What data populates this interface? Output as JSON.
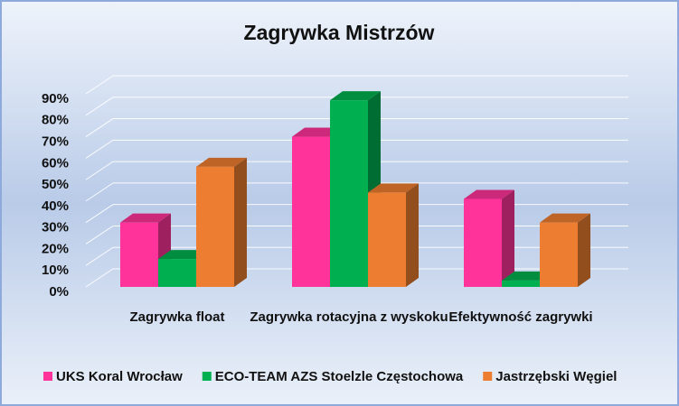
{
  "chart_data": {
    "type": "bar3d",
    "title": "Zagrywka Mistrzów",
    "categories": [
      "Zagrywka float",
      "Zagrywka rotacyjna z wyskoku",
      "Efektywność zagrywki"
    ],
    "series": [
      {
        "name": "UKS Koral Wrocław",
        "color": "#ff3399",
        "values": [
          30,
          70,
          41
        ]
      },
      {
        "name": "ECO-TEAM AZS Stoelzle Częstochowa",
        "color": "#00b050",
        "values": [
          13,
          87,
          3
        ]
      },
      {
        "name": "Jastrzębski Węgiel",
        "color": "#ed7d31",
        "values": [
          56,
          44,
          30
        ]
      }
    ],
    "ylim": [
      0,
      90
    ],
    "yticks": [
      {
        "value": 0,
        "label": "0%"
      },
      {
        "value": 10,
        "label": "10%"
      },
      {
        "value": 20,
        "label": "20%"
      },
      {
        "value": 30,
        "label": "30%"
      },
      {
        "value": 40,
        "label": "40%"
      },
      {
        "value": 50,
        "label": "50%"
      },
      {
        "value": 60,
        "label": "60%"
      },
      {
        "value": 70,
        "label": "70%"
      },
      {
        "value": 80,
        "label": "80%"
      },
      {
        "value": 90,
        "label": "90%"
      }
    ],
    "grid": true,
    "legend": "bottom"
  }
}
